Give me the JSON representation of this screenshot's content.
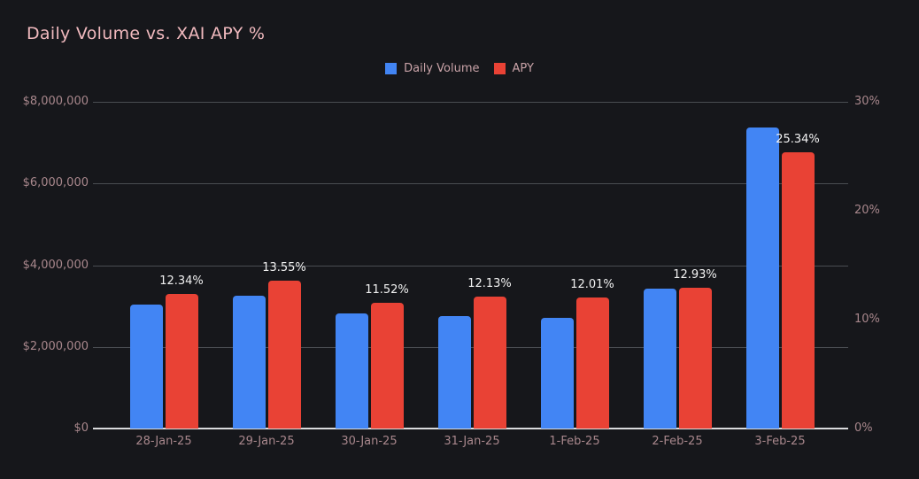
{
  "title": "Daily Volume vs. XAI APY %",
  "colors": {
    "background": "#16171B",
    "title_text": "#F0B9BE",
    "axis_label_text": "#A8878C",
    "legend_label_text": "#C9A3A8",
    "grid_line": "#4A4D52",
    "axis_line": "#DADBDD",
    "data_label_text": "#F2F2F2",
    "volume_bar": "#4285F4",
    "apy_bar": "#E94235"
  },
  "legend": [
    {
      "label": "Daily Volume",
      "color": "#4285F4"
    },
    {
      "label": "APY",
      "color": "#E94235"
    }
  ],
  "chart_data": {
    "type": "bar",
    "title": "Daily Volume vs. XAI APY %",
    "categories": [
      "28-Jan-25",
      "29-Jan-25",
      "30-Jan-25",
      "31-Jan-25",
      "1-Feb-25",
      "2-Feb-25",
      "3-Feb-25"
    ],
    "series": [
      {
        "name": "Daily Volume",
        "axis": "left",
        "color": "#4285F4",
        "values": [
          3030000,
          3250000,
          2820000,
          2750000,
          2710000,
          3430000,
          7370000
        ]
      },
      {
        "name": "APY",
        "axis": "right",
        "color": "#E94235",
        "values": [
          12.34,
          13.55,
          11.52,
          12.13,
          12.01,
          12.93,
          25.34
        ],
        "data_labels": [
          "12.34%",
          "13.55%",
          "11.52%",
          "12.13%",
          "12.01%",
          "12.93%",
          "25.34%"
        ]
      }
    ],
    "left_axis": {
      "min": 0,
      "max": 8000000,
      "ticks": [
        {
          "label": "$0",
          "value": 0
        },
        {
          "label": "$2,000,000",
          "value": 2000000
        },
        {
          "label": "$4,000,000",
          "value": 4000000
        },
        {
          "label": "$6,000,000",
          "value": 6000000
        },
        {
          "label": "$8,000,000",
          "value": 8000000
        }
      ]
    },
    "right_axis": {
      "min": 0,
      "max": 30,
      "ticks": [
        {
          "label": "0%",
          "value": 0
        },
        {
          "label": "10%",
          "value": 10
        },
        {
          "label": "20%",
          "value": 20
        },
        {
          "label": "30%",
          "value": 30
        }
      ]
    },
    "grid": true,
    "legend_position": "top-center"
  }
}
